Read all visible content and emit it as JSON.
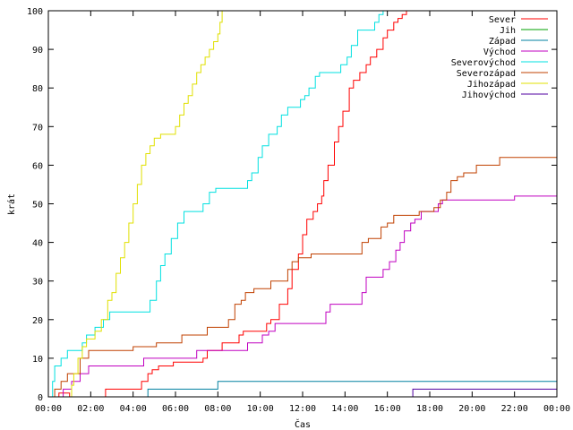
{
  "chart_data": {
    "type": "line",
    "xlabel": "Čas",
    "ylabel": "krát",
    "xlim": [
      0,
      24
    ],
    "ylim": [
      0,
      100
    ],
    "x_ticks": [
      "00:00",
      "02:00",
      "04:00",
      "06:00",
      "08:00",
      "10:00",
      "12:00",
      "14:00",
      "16:00",
      "18:00",
      "20:00",
      "22:00",
      "00:00"
    ],
    "y_ticks": [
      "0",
      "10",
      "20",
      "30",
      "40",
      "50",
      "60",
      "70",
      "80",
      "90",
      "100"
    ],
    "grid": false,
    "legend_position": "top-right",
    "series": [
      {
        "name": "Sever",
        "color": "#ff0000",
        "points": [
          [
            0,
            0
          ],
          [
            0.4,
            0
          ],
          [
            0.5,
            1
          ],
          [
            0.9,
            1
          ],
          [
            1.0,
            0
          ],
          [
            2.6,
            0
          ],
          [
            2.7,
            2
          ],
          [
            4.3,
            2
          ],
          [
            4.4,
            4
          ],
          [
            4.6,
            4
          ],
          [
            4.7,
            6
          ],
          [
            4.9,
            7
          ],
          [
            5.2,
            8
          ],
          [
            5.9,
            9
          ],
          [
            7.2,
            9
          ],
          [
            7.3,
            10
          ],
          [
            7.5,
            12
          ],
          [
            8.1,
            12
          ],
          [
            8.2,
            14
          ],
          [
            8.9,
            14
          ],
          [
            9.0,
            16
          ],
          [
            9.2,
            17
          ],
          [
            10.2,
            17
          ],
          [
            10.3,
            19
          ],
          [
            10.5,
            20
          ],
          [
            10.9,
            24
          ],
          [
            11.3,
            28
          ],
          [
            11.5,
            33
          ],
          [
            11.8,
            37
          ],
          [
            12.0,
            42
          ],
          [
            12.2,
            46
          ],
          [
            12.5,
            48
          ],
          [
            12.7,
            50
          ],
          [
            12.9,
            52
          ],
          [
            13.0,
            56
          ],
          [
            13.2,
            60
          ],
          [
            13.5,
            66
          ],
          [
            13.7,
            70
          ],
          [
            13.9,
            74
          ],
          [
            14.2,
            80
          ],
          [
            14.4,
            82
          ],
          [
            14.7,
            84
          ],
          [
            15.0,
            86
          ],
          [
            15.2,
            88
          ],
          [
            15.5,
            90
          ],
          [
            15.8,
            93
          ],
          [
            16.0,
            95
          ],
          [
            16.3,
            97
          ],
          [
            16.5,
            98
          ],
          [
            16.7,
            99
          ],
          [
            16.9,
            100
          ]
        ]
      },
      {
        "name": "Jih",
        "color": "#00a000",
        "points": []
      },
      {
        "name": "Západ",
        "color": "#0080a0",
        "points": [
          [
            0,
            0
          ],
          [
            4.6,
            0
          ],
          [
            4.7,
            2
          ],
          [
            7.9,
            2
          ],
          [
            8.0,
            4
          ],
          [
            24,
            4
          ]
        ]
      },
      {
        "name": "Východ",
        "color": "#c000c0",
        "points": [
          [
            0,
            0
          ],
          [
            0.6,
            0
          ],
          [
            0.7,
            2
          ],
          [
            1.1,
            4
          ],
          [
            1.5,
            6
          ],
          [
            1.9,
            8
          ],
          [
            4.3,
            8
          ],
          [
            4.5,
            10
          ],
          [
            6.9,
            10
          ],
          [
            7.0,
            12
          ],
          [
            9.2,
            12
          ],
          [
            9.4,
            14
          ],
          [
            9.9,
            14
          ],
          [
            10.1,
            16
          ],
          [
            10.4,
            17
          ],
          [
            10.7,
            19
          ],
          [
            12.9,
            19
          ],
          [
            13.1,
            22
          ],
          [
            13.3,
            24
          ],
          [
            14.7,
            24
          ],
          [
            14.8,
            27
          ],
          [
            15.0,
            31
          ],
          [
            15.6,
            31
          ],
          [
            15.8,
            33
          ],
          [
            16.1,
            35
          ],
          [
            16.4,
            38
          ],
          [
            16.6,
            40
          ],
          [
            16.8,
            43
          ],
          [
            17.1,
            45
          ],
          [
            17.3,
            46
          ],
          [
            17.6,
            48
          ],
          [
            18.2,
            48
          ],
          [
            18.4,
            50
          ],
          [
            18.6,
            51
          ],
          [
            21.9,
            51
          ],
          [
            22.0,
            52
          ],
          [
            24,
            52
          ]
        ]
      },
      {
        "name": "Severovýchod",
        "color": "#00e0e0",
        "points": [
          [
            0,
            0
          ],
          [
            0.2,
            4
          ],
          [
            0.3,
            8
          ],
          [
            0.6,
            10
          ],
          [
            0.9,
            12
          ],
          [
            1.5,
            12
          ],
          [
            1.6,
            14
          ],
          [
            1.8,
            16
          ],
          [
            2.2,
            18
          ],
          [
            2.6,
            20
          ],
          [
            2.9,
            22
          ],
          [
            4.6,
            22
          ],
          [
            4.8,
            25
          ],
          [
            5.1,
            30
          ],
          [
            5.3,
            34
          ],
          [
            5.5,
            37
          ],
          [
            5.8,
            41
          ],
          [
            6.1,
            45
          ],
          [
            6.4,
            48
          ],
          [
            7.1,
            48
          ],
          [
            7.3,
            50
          ],
          [
            7.6,
            53
          ],
          [
            7.9,
            54
          ],
          [
            9.2,
            54
          ],
          [
            9.4,
            56
          ],
          [
            9.6,
            58
          ],
          [
            9.9,
            62
          ],
          [
            10.1,
            65
          ],
          [
            10.4,
            68
          ],
          [
            10.8,
            70
          ],
          [
            11.0,
            73
          ],
          [
            11.3,
            75
          ],
          [
            11.8,
            75
          ],
          [
            11.9,
            77
          ],
          [
            12.1,
            78
          ],
          [
            12.3,
            80
          ],
          [
            12.6,
            83
          ],
          [
            12.8,
            84
          ],
          [
            13.6,
            84
          ],
          [
            13.8,
            86
          ],
          [
            14.1,
            88
          ],
          [
            14.3,
            91
          ],
          [
            14.6,
            95
          ],
          [
            15.3,
            95
          ],
          [
            15.4,
            97
          ],
          [
            15.6,
            99
          ],
          [
            15.8,
            100
          ]
        ]
      },
      {
        "name": "Severozápad",
        "color": "#c04000",
        "points": [
          [
            0,
            0
          ],
          [
            0.3,
            2
          ],
          [
            0.6,
            4
          ],
          [
            0.9,
            6
          ],
          [
            1.3,
            6
          ],
          [
            1.5,
            10
          ],
          [
            1.9,
            12
          ],
          [
            3.9,
            12
          ],
          [
            4.0,
            13
          ],
          [
            4.9,
            13
          ],
          [
            5.1,
            14
          ],
          [
            6.1,
            14
          ],
          [
            6.3,
            16
          ],
          [
            7.3,
            16
          ],
          [
            7.5,
            18
          ],
          [
            8.3,
            18
          ],
          [
            8.5,
            20
          ],
          [
            8.8,
            24
          ],
          [
            9.1,
            25
          ],
          [
            9.3,
            27
          ],
          [
            9.7,
            28
          ],
          [
            10.3,
            28
          ],
          [
            10.5,
            30
          ],
          [
            11.2,
            30
          ],
          [
            11.3,
            33
          ],
          [
            11.5,
            35
          ],
          [
            11.8,
            36
          ],
          [
            12.2,
            36
          ],
          [
            12.4,
            37
          ],
          [
            14.6,
            37
          ],
          [
            14.8,
            40
          ],
          [
            15.1,
            41
          ],
          [
            15.5,
            41
          ],
          [
            15.7,
            44
          ],
          [
            16.0,
            45
          ],
          [
            16.3,
            47
          ],
          [
            17.4,
            47
          ],
          [
            17.5,
            48
          ],
          [
            18.0,
            48
          ],
          [
            18.2,
            49
          ],
          [
            18.5,
            51
          ],
          [
            18.8,
            53
          ],
          [
            19.0,
            56
          ],
          [
            19.3,
            57
          ],
          [
            19.6,
            58
          ],
          [
            20.0,
            58
          ],
          [
            20.2,
            60
          ],
          [
            21.1,
            60
          ],
          [
            21.3,
            62
          ],
          [
            24,
            62
          ]
        ]
      },
      {
        "name": "Jihozápad",
        "color": "#e0e000",
        "points": [
          [
            0,
            0
          ],
          [
            1.0,
            0
          ],
          [
            1.1,
            3
          ],
          [
            1.2,
            6
          ],
          [
            1.4,
            10
          ],
          [
            1.6,
            13
          ],
          [
            1.8,
            15
          ],
          [
            2.2,
            17
          ],
          [
            2.5,
            20
          ],
          [
            2.8,
            25
          ],
          [
            3.0,
            27
          ],
          [
            3.2,
            32
          ],
          [
            3.4,
            36
          ],
          [
            3.6,
            40
          ],
          [
            3.8,
            45
          ],
          [
            4.0,
            50
          ],
          [
            4.2,
            55
          ],
          [
            4.4,
            60
          ],
          [
            4.6,
            63
          ],
          [
            4.8,
            65
          ],
          [
            5.0,
            67
          ],
          [
            5.3,
            68
          ],
          [
            5.8,
            68
          ],
          [
            6.0,
            70
          ],
          [
            6.2,
            73
          ],
          [
            6.4,
            76
          ],
          [
            6.6,
            78
          ],
          [
            6.8,
            81
          ],
          [
            7.0,
            84
          ],
          [
            7.2,
            86
          ],
          [
            7.4,
            88
          ],
          [
            7.6,
            90
          ],
          [
            7.8,
            92
          ],
          [
            8.0,
            94
          ],
          [
            8.1,
            97
          ],
          [
            8.2,
            100
          ]
        ]
      },
      {
        "name": "Jihovýchod",
        "color": "#5000a0",
        "points": [
          [
            0,
            0
          ],
          [
            17.1,
            0
          ],
          [
            17.2,
            2
          ],
          [
            24,
            2
          ]
        ]
      }
    ]
  }
}
